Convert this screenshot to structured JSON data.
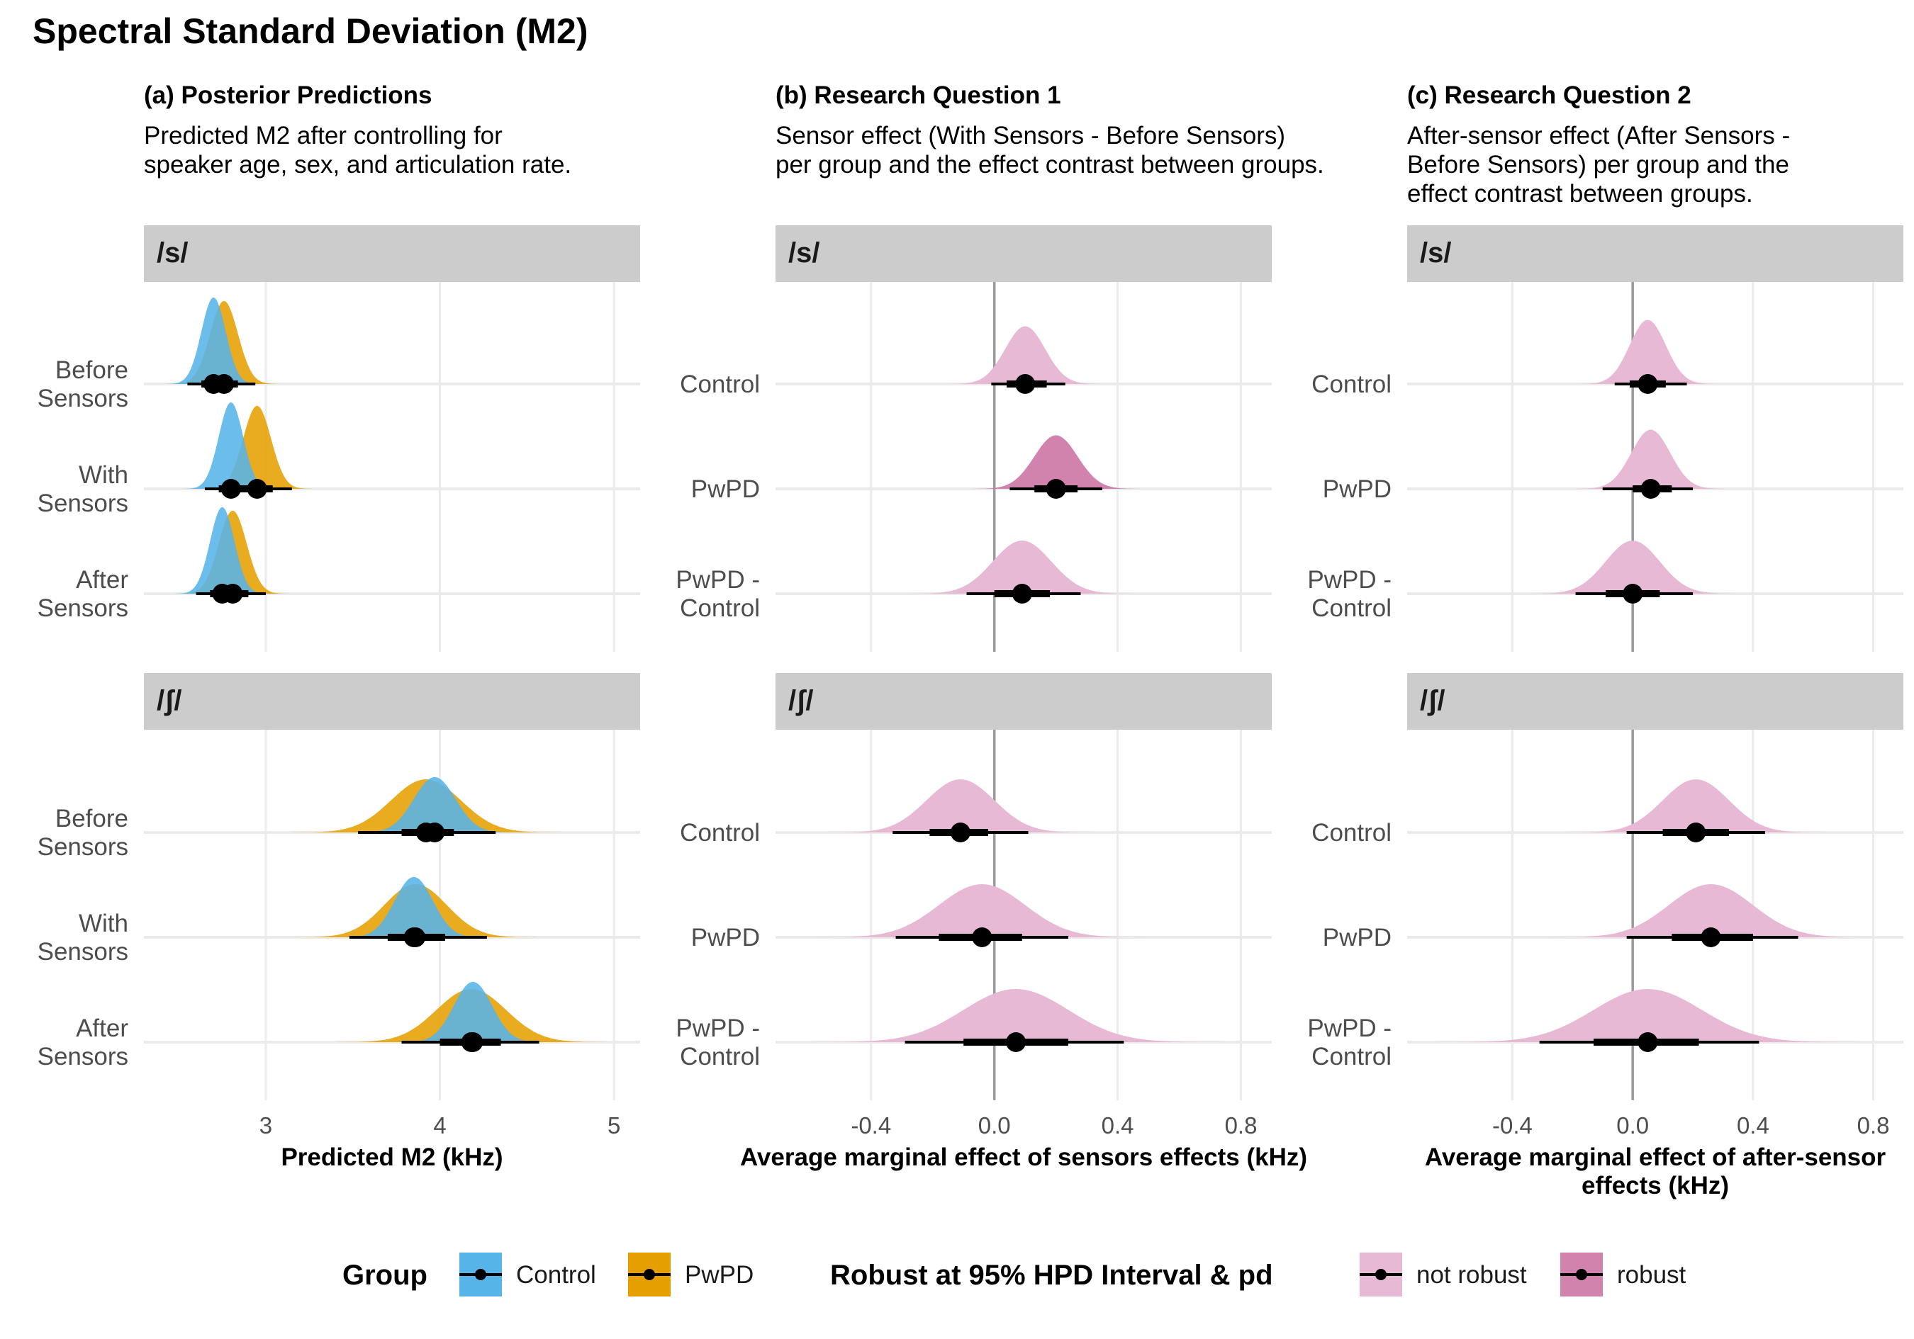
{
  "title": "Spectral Standard Deviation (M2)",
  "panels": [
    {
      "heading": "(a) Posterior Predictions",
      "desc": [
        "Predicted M2 after controlling for",
        "speaker age, sex, and articulation rate."
      ],
      "xlabel": [
        "Predicted M2 (kHz)"
      ]
    },
    {
      "heading": "(b) Research Question 1",
      "desc": [
        "Sensor effect (With Sensors - Before Sensors)",
        "per group and the effect contrast between groups."
      ],
      "xlabel": [
        "Average marginal effect of sensors effects (kHz)"
      ]
    },
    {
      "heading": "(c) Research Question 2",
      "desc": [
        "After-sensor effect (After Sensors -",
        "Before Sensors) per group and the",
        "effect contrast between groups."
      ],
      "xlabel": [
        "Average marginal effect of after-sensor",
        "effects (kHz)"
      ]
    }
  ],
  "legend": {
    "group_title": "Group",
    "group_items": [
      "Control",
      "PwPD"
    ],
    "robust_title": "Robust at 95% HPD Interval & pd",
    "robust_items": [
      "not robust",
      "robust"
    ]
  },
  "colors": {
    "Control": "#56B4E9",
    "PwPD": "#E69F00",
    "not robust": "#E7B9D4",
    "robust": "#D183AE",
    "strip": "#CCCCCC",
    "grid": "#EBEBEB"
  },
  "chart_data": [
    {
      "type": "area",
      "title": "(a) Posterior Predictions",
      "xlabel": "Predicted M2 (kHz)",
      "xticks": [
        3,
        4,
        5
      ],
      "xlim": [
        2.3,
        5.15
      ],
      "rows": [
        "Before\nSensors",
        "With\nSensors",
        "After\nSensors"
      ],
      "facets": [
        {
          "label": "/s/",
          "series": [
            {
              "row": "Before\nSensors",
              "group": "PwPD",
              "mean": 2.76,
              "sd": 0.08,
              "q66": [
                2.68,
                2.84
              ],
              "q95": [
                2.6,
                2.94
              ]
            },
            {
              "row": "Before\nSensors",
              "group": "Control",
              "mean": 2.7,
              "sd": 0.07,
              "q66": [
                2.63,
                2.77
              ],
              "q95": [
                2.55,
                2.84
              ]
            },
            {
              "row": "With\nSensors",
              "group": "PwPD",
              "mean": 2.95,
              "sd": 0.08,
              "q66": [
                2.87,
                3.04
              ],
              "q95": [
                2.79,
                3.15
              ]
            },
            {
              "row": "With\nSensors",
              "group": "Control",
              "mean": 2.8,
              "sd": 0.07,
              "q66": [
                2.73,
                2.87
              ],
              "q95": [
                2.65,
                2.95
              ]
            },
            {
              "row": "After\nSensors",
              "group": "PwPD",
              "mean": 2.81,
              "sd": 0.08,
              "q66": [
                2.73,
                2.9
              ],
              "q95": [
                2.65,
                3.0
              ]
            },
            {
              "row": "After\nSensors",
              "group": "Control",
              "mean": 2.75,
              "sd": 0.07,
              "q66": [
                2.68,
                2.82
              ],
              "q95": [
                2.6,
                2.9
              ]
            }
          ]
        },
        {
          "label": "/ʃ/",
          "series": [
            {
              "row": "Before\nSensors",
              "group": "PwPD",
              "mean": 3.92,
              "sd": 0.2,
              "q66": [
                3.78,
                4.08
              ],
              "q95": [
                3.53,
                4.32
              ]
            },
            {
              "row": "Before\nSensors",
              "group": "Control",
              "mean": 3.97,
              "sd": 0.12,
              "q66": [
                3.86,
                4.08
              ],
              "q95": [
                3.74,
                4.18
              ]
            },
            {
              "row": "With\nSensors",
              "group": "PwPD",
              "mean": 3.86,
              "sd": 0.18,
              "q66": [
                3.7,
                4.03
              ],
              "q95": [
                3.48,
                4.27
              ]
            },
            {
              "row": "With\nSensors",
              "group": "Control",
              "mean": 3.85,
              "sd": 0.11,
              "q66": [
                3.76,
                3.96
              ],
              "q95": [
                3.65,
                4.06
              ]
            },
            {
              "row": "After\nSensors",
              "group": "PwPD",
              "mean": 4.18,
              "sd": 0.2,
              "q66": [
                4.0,
                4.35
              ],
              "q95": [
                3.78,
                4.57
              ]
            },
            {
              "row": "After\nSensors",
              "group": "Control",
              "mean": 4.19,
              "sd": 0.11,
              "q66": [
                4.08,
                4.28
              ],
              "q95": [
                3.97,
                4.37
              ]
            }
          ]
        }
      ]
    },
    {
      "type": "area",
      "title": "(b) Research Question 1",
      "xlabel": "Average marginal effect of sensors effects (kHz)",
      "xticks": [
        -0.4,
        0.0,
        0.4,
        0.8
      ],
      "xlim": [
        -0.71,
        0.9
      ],
      "rows": [
        "Control",
        "PwPD",
        "PwPD -\nControl"
      ],
      "facets": [
        {
          "label": "/s/",
          "series": [
            {
              "row": "Control",
              "mean": 0.1,
              "sd": 0.065,
              "q66": [
                0.04,
                0.17
              ],
              "q95": [
                -0.01,
                0.23
              ],
              "robust": false
            },
            {
              "row": "PwPD",
              "mean": 0.2,
              "sd": 0.07,
              "q66": [
                0.13,
                0.27
              ],
              "q95": [
                0.05,
                0.35
              ],
              "robust": true
            },
            {
              "row": "PwPD -\nControl",
              "mean": 0.09,
              "sd": 0.095,
              "q66": [
                0.0,
                0.18
              ],
              "q95": [
                -0.09,
                0.28
              ],
              "robust": false
            }
          ]
        },
        {
          "label": "/ʃ/",
          "series": [
            {
              "row": "Control",
              "mean": -0.11,
              "sd": 0.11,
              "q66": [
                -0.21,
                -0.02
              ],
              "q95": [
                -0.33,
                0.11
              ],
              "robust": false
            },
            {
              "row": "PwPD",
              "mean": -0.04,
              "sd": 0.14,
              "q66": [
                -0.18,
                0.09
              ],
              "q95": [
                -0.32,
                0.24
              ],
              "robust": false
            },
            {
              "row": "PwPD -\nControl",
              "mean": 0.07,
              "sd": 0.17,
              "q66": [
                -0.1,
                0.24
              ],
              "q95": [
                -0.29,
                0.42
              ],
              "robust": false
            }
          ]
        }
      ]
    },
    {
      "type": "area",
      "title": "(c) Research Question 2",
      "xlabel": "Average marginal effect of after-sensor effects (kHz)",
      "xticks": [
        -0.4,
        0.0,
        0.4,
        0.8
      ],
      "xlim": [
        -0.75,
        0.9
      ],
      "rows": [
        "Control",
        "PwPD",
        "PwPD -\nControl"
      ],
      "facets": [
        {
          "label": "/s/",
          "series": [
            {
              "row": "Control",
              "mean": 0.05,
              "sd": 0.06,
              "q66": [
                -0.01,
                0.11
              ],
              "q95": [
                -0.06,
                0.18
              ],
              "robust": false
            },
            {
              "row": "PwPD",
              "mean": 0.06,
              "sd": 0.065,
              "q66": [
                0.0,
                0.13
              ],
              "q95": [
                -0.1,
                0.2
              ],
              "robust": false
            },
            {
              "row": "PwPD -\nControl",
              "mean": 0.0,
              "sd": 0.09,
              "q66": [
                -0.09,
                0.09
              ],
              "q95": [
                -0.19,
                0.2
              ],
              "robust": false
            }
          ]
        },
        {
          "label": "/ʃ/",
          "series": [
            {
              "row": "Control",
              "mean": 0.21,
              "sd": 0.11,
              "q66": [
                0.1,
                0.32
              ],
              "q95": [
                -0.02,
                0.44
              ],
              "robust": false
            },
            {
              "row": "PwPD",
              "mean": 0.26,
              "sd": 0.14,
              "q66": [
                0.13,
                0.4
              ],
              "q95": [
                -0.02,
                0.55
              ],
              "robust": false
            },
            {
              "row": "PwPD -\nControl",
              "mean": 0.05,
              "sd": 0.18,
              "q66": [
                -0.13,
                0.22
              ],
              "q95": [
                -0.31,
                0.42
              ],
              "robust": false
            }
          ]
        }
      ]
    }
  ]
}
